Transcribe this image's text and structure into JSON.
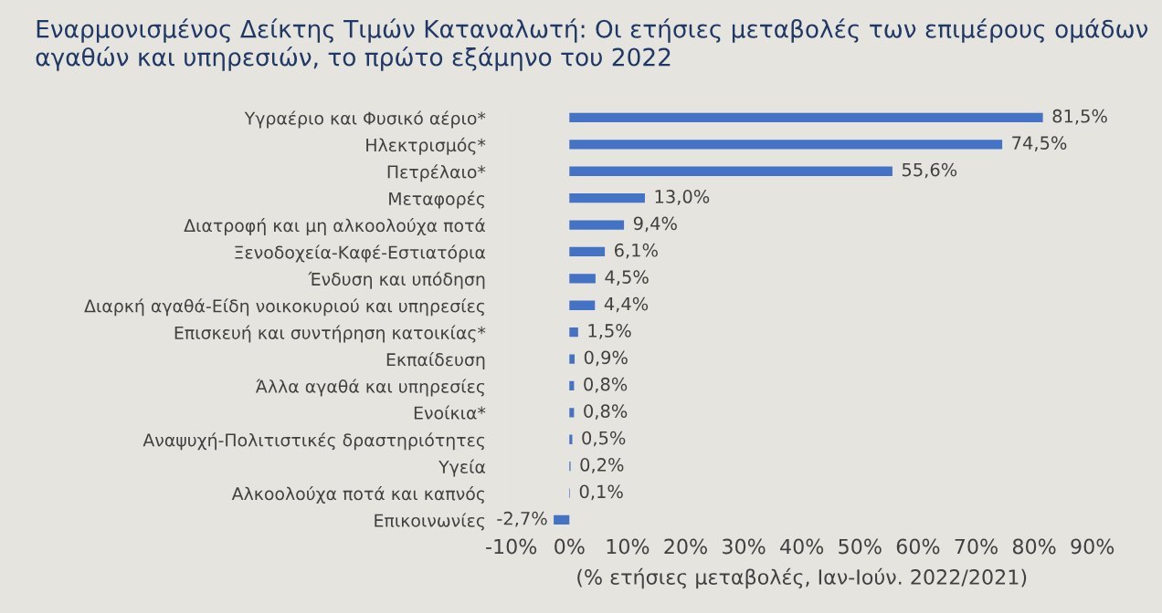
{
  "chart_data": {
    "type": "bar",
    "orientation": "horizontal",
    "title": "Εναρμονισμένος Δείκτης Τιμών Καταναλωτή: Οι ετήσιες μεταβολές των επιμέρους ομάδων αγαθών και υπηρεσιών, το πρώτο εξάμηνο του 2022",
    "xlabel": "(% ετήσιες μεταβολές, Ιαν-Ιούν. 2022/2021)",
    "categories": [
      "Υγραέριο και Φυσικό αέριο*",
      "Ηλεκτρισμός*",
      "Πετρέλαιο*",
      "Μεταφορές",
      "Διατροφή και μη αλκοολούχα ποτά",
      "Ξενοδοχεία-Καφέ-Εστιατόρια",
      "Ένδυση και υπόδηση",
      "Διαρκή αγαθά-Είδη νοικοκυριού και υπηρεσίες",
      "Επισκευή και συντήρηση κατοικίας*",
      "Εκπαίδευση",
      "Άλλα αγαθά και υπηρεσίες",
      "Ενοίκια*",
      "Αναψυχή-Πολιτιστικές δραστηριότητες",
      "Υγεία",
      "Αλκοολούχα ποτά και καπνός",
      "Επικοινωνίες"
    ],
    "values": [
      81.5,
      74.5,
      55.6,
      13.0,
      9.4,
      6.1,
      4.5,
      4.4,
      1.5,
      0.9,
      0.8,
      0.8,
      0.5,
      0.2,
      0.1,
      -2.7
    ],
    "value_labels": [
      "81,5%",
      "74,5%",
      "55,6%",
      "13,0%",
      "9,4%",
      "6,1%",
      "4,5%",
      "4,4%",
      "1,5%",
      "0,9%",
      "0,8%",
      "0,8%",
      "0,5%",
      "0,2%",
      "0,1%",
      "-2,7%"
    ],
    "color": "#4472c4",
    "xlim": [
      -10,
      90
    ],
    "xticks": [
      {
        "value": -10,
        "label": "-10%"
      },
      {
        "value": 0,
        "label": "0%"
      },
      {
        "value": 10,
        "label": "10%"
      },
      {
        "value": 20,
        "label": "20%"
      },
      {
        "value": 30,
        "label": "30%"
      },
      {
        "value": 40,
        "label": "40%"
      },
      {
        "value": 50,
        "label": "50%"
      },
      {
        "value": 60,
        "label": "60%"
      },
      {
        "value": 70,
        "label": "70%"
      },
      {
        "value": 80,
        "label": "80%"
      },
      {
        "value": 90,
        "label": "90%"
      }
    ],
    "grid": false,
    "legend": false
  }
}
